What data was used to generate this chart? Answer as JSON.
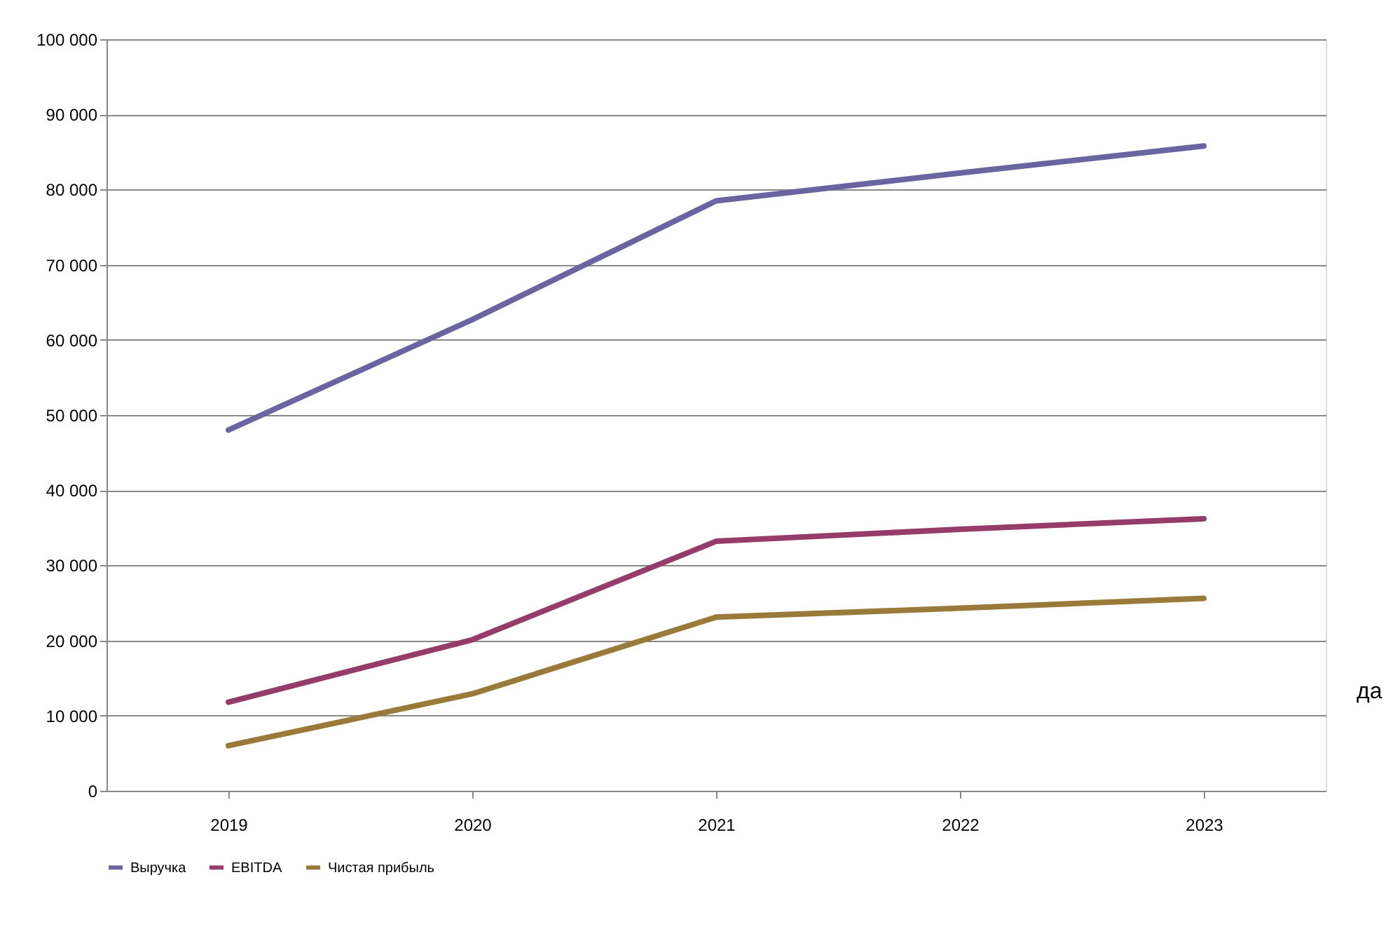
{
  "chart_data": {
    "type": "line",
    "categories": [
      "2019",
      "2020",
      "2021",
      "2022",
      "2023"
    ],
    "series": [
      {
        "name": "Выручка",
        "color": "#6a64a0",
        "values": [
          48000,
          62700,
          78500,
          82200,
          85800
        ]
      },
      {
        "name": "EBITDA",
        "color": "#963c6a",
        "values": [
          11800,
          20100,
          33200,
          34800,
          36200
        ]
      },
      {
        "name": "Чистая прибыль",
        "color": "#9a7a3a",
        "values": [
          6000,
          12900,
          23100,
          24300,
          25600
        ]
      }
    ],
    "ylim": [
      0,
      100000
    ],
    "yticks": [
      0,
      {
        "value": 10000,
        "label": "10 000"
      },
      {
        "value": 20000,
        "label": "20 000"
      },
      {
        "value": 30000,
        "label": "30 000"
      },
      {
        "value": 40000,
        "label": "40 000"
      },
      {
        "value": 50000,
        "label": "50 000"
      },
      {
        "value": 60000,
        "label": "60 000"
      },
      {
        "value": 70000,
        "label": "70 000"
      },
      {
        "value": 80000,
        "label": "80 000"
      },
      {
        "value": 90000,
        "label": "90 000"
      },
      {
        "value": 100000,
        "label": "100 000"
      }
    ],
    "grid": "y",
    "legend": "bottom",
    "marker": "none",
    "line_style": "solid",
    "annotations": [
      "да"
    ]
  }
}
